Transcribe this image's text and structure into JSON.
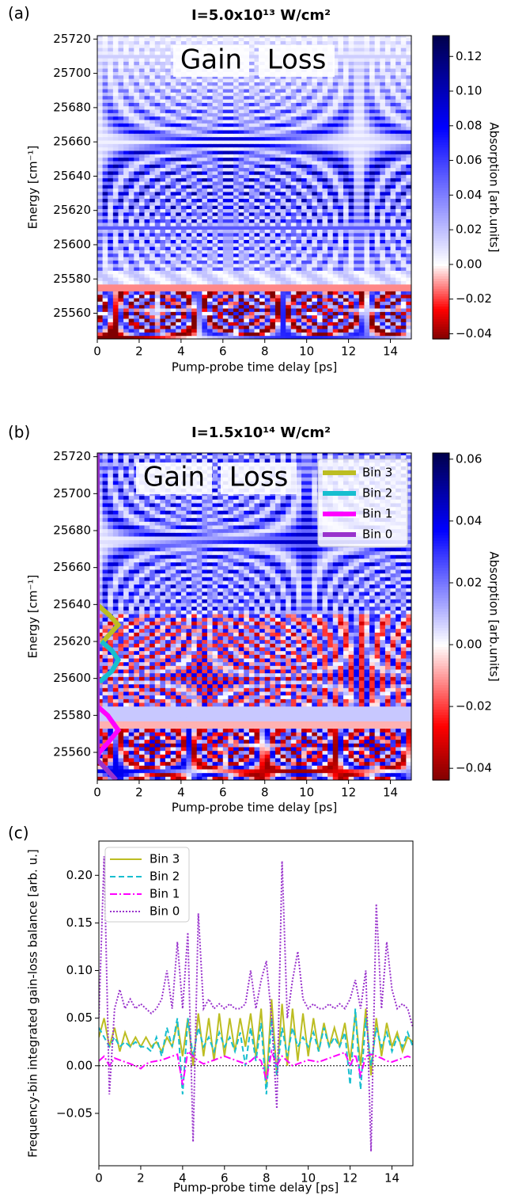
{
  "chart_data": [
    {
      "type": "heatmap",
      "panel_label": "(a)",
      "title": "I=5.0x10¹³ W/cm²",
      "xlabel": "Pump-probe time delay [ps]",
      "ylabel": "Energy [cm⁻¹]",
      "xlim": [
        0,
        15
      ],
      "xticks": [
        0,
        2,
        4,
        6,
        8,
        10,
        12,
        14
      ],
      "ylim": [
        25545,
        25722
      ],
      "yticks": [
        25560,
        25580,
        25600,
        25620,
        25640,
        25660,
        25680,
        25700,
        25720
      ],
      "annotations": [
        {
          "text": "Gain",
          "color": "#ee0000"
        },
        {
          "text": "Loss",
          "color": "#0000cc"
        }
      ],
      "colorbar": {
        "label": "Absorption [arb.units]",
        "lim": [
          -0.043,
          0.132
        ],
        "ticks": [
          {
            "value": -0.04,
            "label": "−0.04"
          },
          {
            "value": -0.02,
            "label": "−0.02"
          },
          {
            "value": 0,
            "label": "0.00"
          },
          {
            "value": 0.02,
            "label": "0.02"
          },
          {
            "value": 0.04,
            "label": "0.04"
          },
          {
            "value": 0.06,
            "label": "0.06"
          },
          {
            "value": 0.08,
            "label": "0.08"
          },
          {
            "value": 0.1,
            "label": "0.10"
          },
          {
            "value": 0.12,
            "label": "0.12"
          }
        ]
      }
    },
    {
      "type": "heatmap",
      "panel_label": "(b)",
      "title": "I=1.5x10¹⁴ W/cm²",
      "xlabel": "Pump-probe time delay [ps]",
      "ylabel": "Energy [cm⁻¹]",
      "xlim": [
        0,
        15
      ],
      "xticks": [
        0,
        2,
        4,
        6,
        8,
        10,
        12,
        14
      ],
      "ylim": [
        25545,
        25722
      ],
      "yticks": [
        25560,
        25580,
        25600,
        25620,
        25640,
        25660,
        25680,
        25700,
        25720
      ],
      "annotations": [
        {
          "text": "Gain",
          "color": "#ee0000"
        },
        {
          "text": "Loss",
          "color": "#0000cc"
        }
      ],
      "colorbar": {
        "label": "Absorption [arb.units]",
        "lim": [
          -0.0438,
          0.062
        ],
        "ticks": [
          {
            "value": -0.04,
            "label": "−0.04"
          },
          {
            "value": -0.02,
            "label": "−0.02"
          },
          {
            "value": 0,
            "label": "0.00"
          },
          {
            "value": 0.02,
            "label": "0.02"
          },
          {
            "value": 0.04,
            "label": "0.04"
          },
          {
            "value": 0.06,
            "label": "0.06"
          }
        ]
      },
      "legend": "upper right",
      "series": [
        {
          "name": "Bin 3",
          "color": "#bcbd22",
          "x": [
            0,
            0.6,
            1.0,
            0.6,
            0.2
          ],
          "y": [
            25640,
            25634,
            25629,
            25624,
            25619
          ]
        },
        {
          "name": "Bin 2",
          "color": "#17becf",
          "x": [
            0.2,
            0.7,
            1.0,
            0.7,
            0.1
          ],
          "y": [
            25620,
            25615,
            25610,
            25604,
            25598
          ]
        },
        {
          "name": "Bin 1",
          "color": "#ff00ff",
          "x": [
            0,
            0.5,
            1.0,
            0.5,
            0.1,
            0
          ],
          "y": [
            25585,
            25580,
            25572,
            25565,
            25560,
            25557
          ]
        },
        {
          "name": "Bin 0",
          "color": "#9933cc",
          "x": [
            0,
            0,
            0,
            0.5,
            0.9
          ],
          "y": [
            25722,
            25600,
            25556,
            25550,
            25545
          ]
        }
      ]
    },
    {
      "type": "line",
      "panel_label": "(c)",
      "xlabel": "Pump-probe time delay [ps]",
      "ylabel": "Frequency-bin integrated gain-loss balance [arb. u.]",
      "xlim": [
        0,
        15
      ],
      "xticks": [
        0,
        2,
        4,
        6,
        8,
        10,
        12,
        14
      ],
      "ylim": [
        -0.105,
        0.236
      ],
      "yticks": [
        {
          "value": -0.05,
          "label": "−0.05"
        },
        {
          "value": 0,
          "label": "0.00"
        },
        {
          "value": 0.05,
          "label": "0.05"
        },
        {
          "value": 0.1,
          "label": "0.10"
        },
        {
          "value": 0.15,
          "label": "0.15"
        },
        {
          "value": 0.2,
          "label": "0.20"
        }
      ],
      "legend": "upper left",
      "hline": {
        "y": 0,
        "color": "#000000",
        "linestyle": "dotted"
      },
      "x": [
        0,
        0.25,
        0.5,
        0.75,
        1,
        1.25,
        1.5,
        1.75,
        2,
        2.25,
        2.5,
        2.75,
        3,
        3.25,
        3.5,
        3.75,
        4,
        4.25,
        4.5,
        4.75,
        5,
        5.25,
        5.5,
        5.75,
        6,
        6.25,
        6.5,
        6.75,
        7,
        7.25,
        7.5,
        7.75,
        8,
        8.25,
        8.5,
        8.75,
        9,
        9.25,
        9.5,
        9.75,
        10,
        10.25,
        10.5,
        10.75,
        11,
        11.25,
        11.5,
        11.75,
        12,
        12.25,
        12.5,
        12.75,
        13,
        13.25,
        13.5,
        13.75,
        14,
        14.25,
        14.5,
        14.75,
        15
      ],
      "series": [
        {
          "name": "Bin 3",
          "color": "#bcbd22",
          "linestyle": "solid",
          "values": [
            0.03,
            0.05,
            0.02,
            0.04,
            0.015,
            0.035,
            0.02,
            0.03,
            0.02,
            0.03,
            0.02,
            0.025,
            0.015,
            0.03,
            0.02,
            0.045,
            0.01,
            0.05,
            0.0,
            0.055,
            0.01,
            0.05,
            0.005,
            0.055,
            0.01,
            0.05,
            0.015,
            0.05,
            0.02,
            0.055,
            0.01,
            0.06,
            -0.02,
            0.07,
            -0.01,
            0.065,
            0.0,
            0.06,
            0.005,
            0.055,
            0.01,
            0.05,
            0.015,
            0.045,
            0.02,
            0.04,
            0.02,
            0.045,
            0.005,
            0.055,
            0.0,
            0.06,
            -0.01,
            0.05,
            0.01,
            0.045,
            0.02,
            0.035,
            0.015,
            0.03,
            0.025
          ]
        },
        {
          "name": "Bin 2",
          "color": "#17becf",
          "linestyle": "dashed",
          "values": [
            0.04,
            0.03,
            0.02,
            0.03,
            0.02,
            0.025,
            0.02,
            0.025,
            0.02,
            0.02,
            0.015,
            0.03,
            0.01,
            0.04,
            0.02,
            0.05,
            -0.03,
            0.05,
            0.01,
            0.04,
            0.02,
            0.03,
            0.015,
            0.035,
            0.02,
            0.03,
            0.015,
            0.035,
            0.0,
            0.04,
            0.005,
            0.045,
            -0.03,
            0.05,
            -0.01,
            0.04,
            0.01,
            0.04,
            0.02,
            0.03,
            0.02,
            0.035,
            0.015,
            0.04,
            0.02,
            0.03,
            0.02,
            0.035,
            -0.02,
            0.06,
            -0.025,
            0.05,
            0.0,
            0.04,
            0.02,
            0.035,
            0.015,
            0.03,
            0.02,
            0.035,
            0.02
          ]
        },
        {
          "name": "Bin 1",
          "color": "#ff00ff",
          "linestyle": "dashdot",
          "values": [
            0.005,
            0.01,
            0.0,
            0.008,
            0.006,
            0.004,
            0.002,
            0.0,
            -0.003,
            0.002,
            0.004,
            0.005,
            0.006,
            0.008,
            0.01,
            0.012,
            -0.02,
            0.015,
            0.01,
            0.005,
            0.002,
            0.004,
            0.006,
            0.008,
            0.01,
            0.008,
            0.006,
            0.004,
            0.002,
            0.005,
            0.01,
            0.005,
            -0.015,
            0.015,
            0.0,
            0.01,
            0.005,
            0.0,
            0.002,
            0.004,
            0.006,
            0.005,
            0.004,
            0.006,
            0.008,
            0.01,
            0.012,
            0.014,
            0.0,
            0.012,
            -0.01,
            0.01,
            0.012,
            0.01,
            0.008,
            0.005,
            0.004,
            0.006,
            0.008,
            0.01,
            0.008
          ]
        },
        {
          "name": "Bin 0",
          "color": "#9933cc",
          "linestyle": "dotted",
          "values": [
            0.05,
            0.22,
            -0.03,
            0.06,
            0.08,
            0.06,
            0.07,
            0.06,
            0.065,
            0.06,
            0.055,
            0.06,
            0.07,
            0.1,
            0.06,
            0.13,
            0.06,
            0.14,
            -0.08,
            0.16,
            0.06,
            0.07,
            0.06,
            0.065,
            0.06,
            0.065,
            0.06,
            0.06,
            0.065,
            0.1,
            0.06,
            0.09,
            0.11,
            0.05,
            -0.045,
            0.215,
            0.05,
            0.09,
            0.12,
            0.07,
            0.06,
            0.065,
            0.06,
            0.06,
            0.065,
            0.06,
            0.065,
            0.06,
            0.07,
            0.09,
            0.06,
            0.1,
            -0.09,
            0.17,
            0.06,
            0.13,
            0.08,
            0.06,
            0.065,
            0.06,
            0.04
          ]
        }
      ]
    }
  ]
}
